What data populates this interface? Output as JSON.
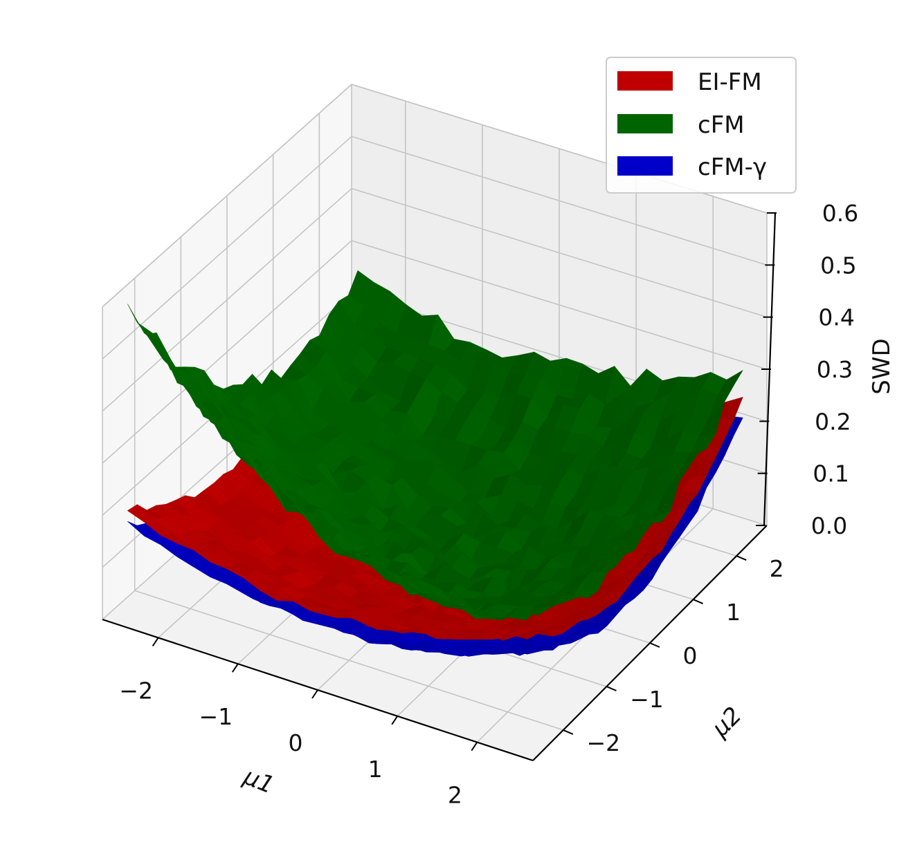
{
  "chart_data": {
    "type": "surface3d",
    "title": "",
    "xlabel": "μ1",
    "ylabel": "μ2",
    "zlabel": "SWD",
    "xlim": [
      -2.7,
      2.7
    ],
    "ylim": [
      -2.7,
      2.7
    ],
    "zlim": [
      0.0,
      0.6
    ],
    "x_ticks": [
      -2,
      -1,
      0,
      1,
      2
    ],
    "y_ticks": [
      -2,
      -1,
      0,
      1,
      2
    ],
    "z_ticks": [
      0.0,
      0.1,
      0.2,
      0.3,
      0.4,
      0.5,
      0.6
    ],
    "x_tick_labels": [
      "−2",
      "−1",
      "0",
      "1",
      "2"
    ],
    "y_tick_labels": [
      "−2",
      "−1",
      "0",
      "1",
      "2"
    ],
    "z_tick_labels": [
      "0.0",
      "0.1",
      "0.2",
      "0.3",
      "0.4",
      "0.5",
      "0.6"
    ],
    "grid": true,
    "legend_position": "top-right",
    "series": [
      {
        "name": "EI-FM",
        "color": "#c00000",
        "surface": {
          "base": 0.01,
          "coef_mu1": 0.014,
          "coef_mu2": 0.019
        },
        "corners": {
          "mu1_-2.5_mu2_-2.5": 0.21,
          "mu1_2.5_mu2_-2.5": 0.22,
          "mu1_-2.5_mu2_2.5": 0.25,
          "mu1_2.5_mu2_2.5": 0.25
        }
      },
      {
        "name": "cFM",
        "color": "#006400",
        "surface": {
          "base": 0.1,
          "coef_mu1": 0.03,
          "coef_mu2": 0.035
        },
        "corners": {
          "mu1_-2.5_mu2_-2.5": 0.6,
          "mu1_2.5_mu2_-2.5": 0.25,
          "mu1_-2.5_mu2_2.5": 0.25,
          "mu1_2.5_mu2_2.5": 0.3
        }
      },
      {
        "name": "cFM-γ",
        "color": "#0000c8",
        "surface": {
          "base": -0.02,
          "coef_mu1": 0.014,
          "coef_mu2": 0.02
        },
        "corners": {
          "mu1_-2.5_mu2_-2.5": 0.18,
          "mu1_2.5_mu2_-2.5": 0.19,
          "mu1_-2.5_mu2_2.5": 0.22,
          "mu1_2.5_mu2_2.5": 0.22
        }
      }
    ]
  }
}
